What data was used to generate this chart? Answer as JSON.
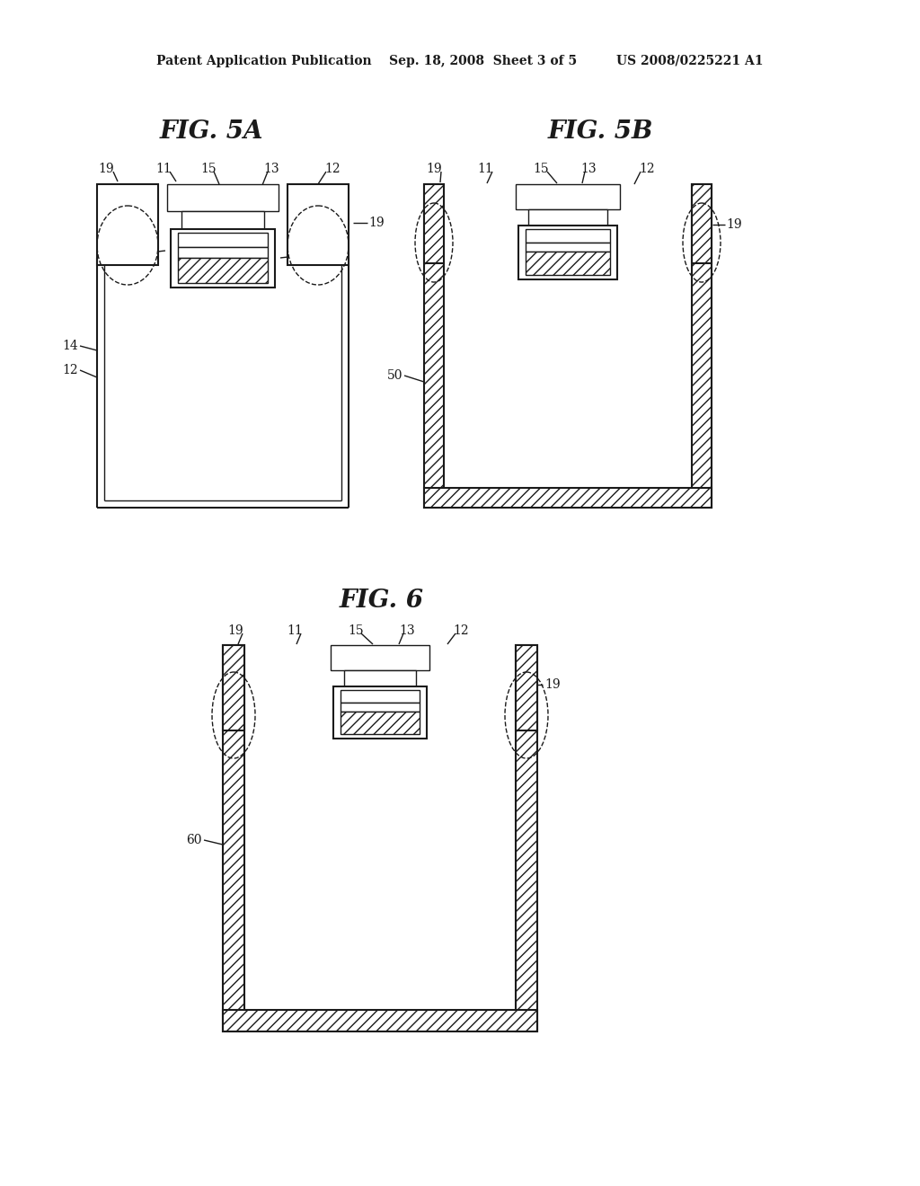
{
  "bg_color": "#ffffff",
  "lc": "#1a1a1a",
  "header": "Patent Application Publication    Sep. 18, 2008  Sheet 3 of 5         US 2008/0225221 A1",
  "title_5A": "FIG. 5A",
  "title_5B": "FIG. 5B",
  "title_6": "FIG. 6"
}
